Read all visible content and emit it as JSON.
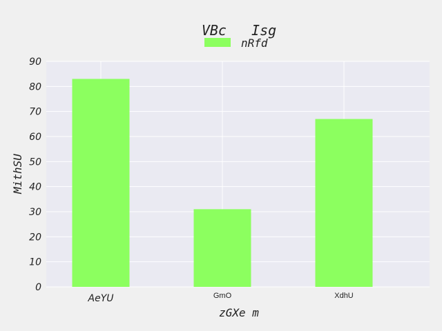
{
  "chart_data": {
    "type": "bar",
    "title": "VBc   Isg",
    "xlabel": "zGXe m",
    "ylabel": "MithSU",
    "categories": [
      "AeYU",
      "GmO",
      "XdhU"
    ],
    "series": [
      {
        "name": "nRfd",
        "values": [
          83,
          31,
          67
        ]
      }
    ],
    "ylim": [
      0,
      90
    ],
    "yticks": [
      0,
      10,
      20,
      30,
      40,
      50,
      60,
      70,
      80,
      90
    ],
    "grid": true,
    "legend_position": "top-center",
    "colors": {
      "bar": "#8cff5f",
      "plot_background": "#eaeaf2",
      "figure_background": "#f0f0f0",
      "grid": "#ffffff"
    }
  }
}
